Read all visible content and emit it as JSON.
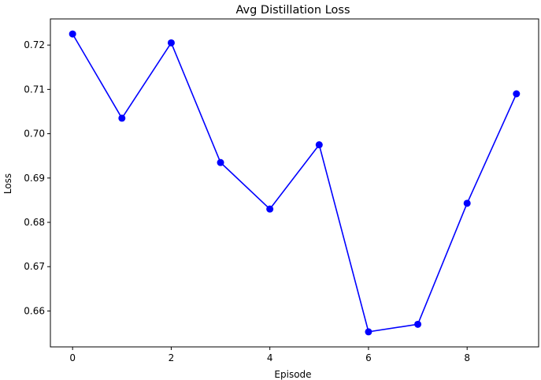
{
  "chart_data": {
    "type": "line",
    "title": "Avg Distillation Loss",
    "xlabel": "Episode",
    "ylabel": "Loss",
    "x": [
      0,
      1,
      2,
      3,
      4,
      5,
      6,
      7,
      8,
      9
    ],
    "series": [
      {
        "values": [
          0.7225,
          0.7035,
          0.7205,
          0.6935,
          0.683,
          0.6975,
          0.6553,
          0.657,
          0.6843,
          0.709
        ],
        "color": "#0000ff",
        "marker": "circle"
      }
    ],
    "xlim": [
      -0.45,
      9.45
    ],
    "ylim": [
      0.6519,
      0.7259
    ],
    "xticks": [
      0,
      2,
      4,
      6,
      8
    ],
    "xtick_labels": [
      "0",
      "2",
      "4",
      "6",
      "8"
    ],
    "yticks": [
      0.66,
      0.67,
      0.68,
      0.69,
      0.7,
      0.71,
      0.72
    ],
    "ytick_labels": [
      "0.66",
      "0.67",
      "0.68",
      "0.69",
      "0.70",
      "0.71",
      "0.72"
    ],
    "grid": false,
    "legend": "none"
  }
}
